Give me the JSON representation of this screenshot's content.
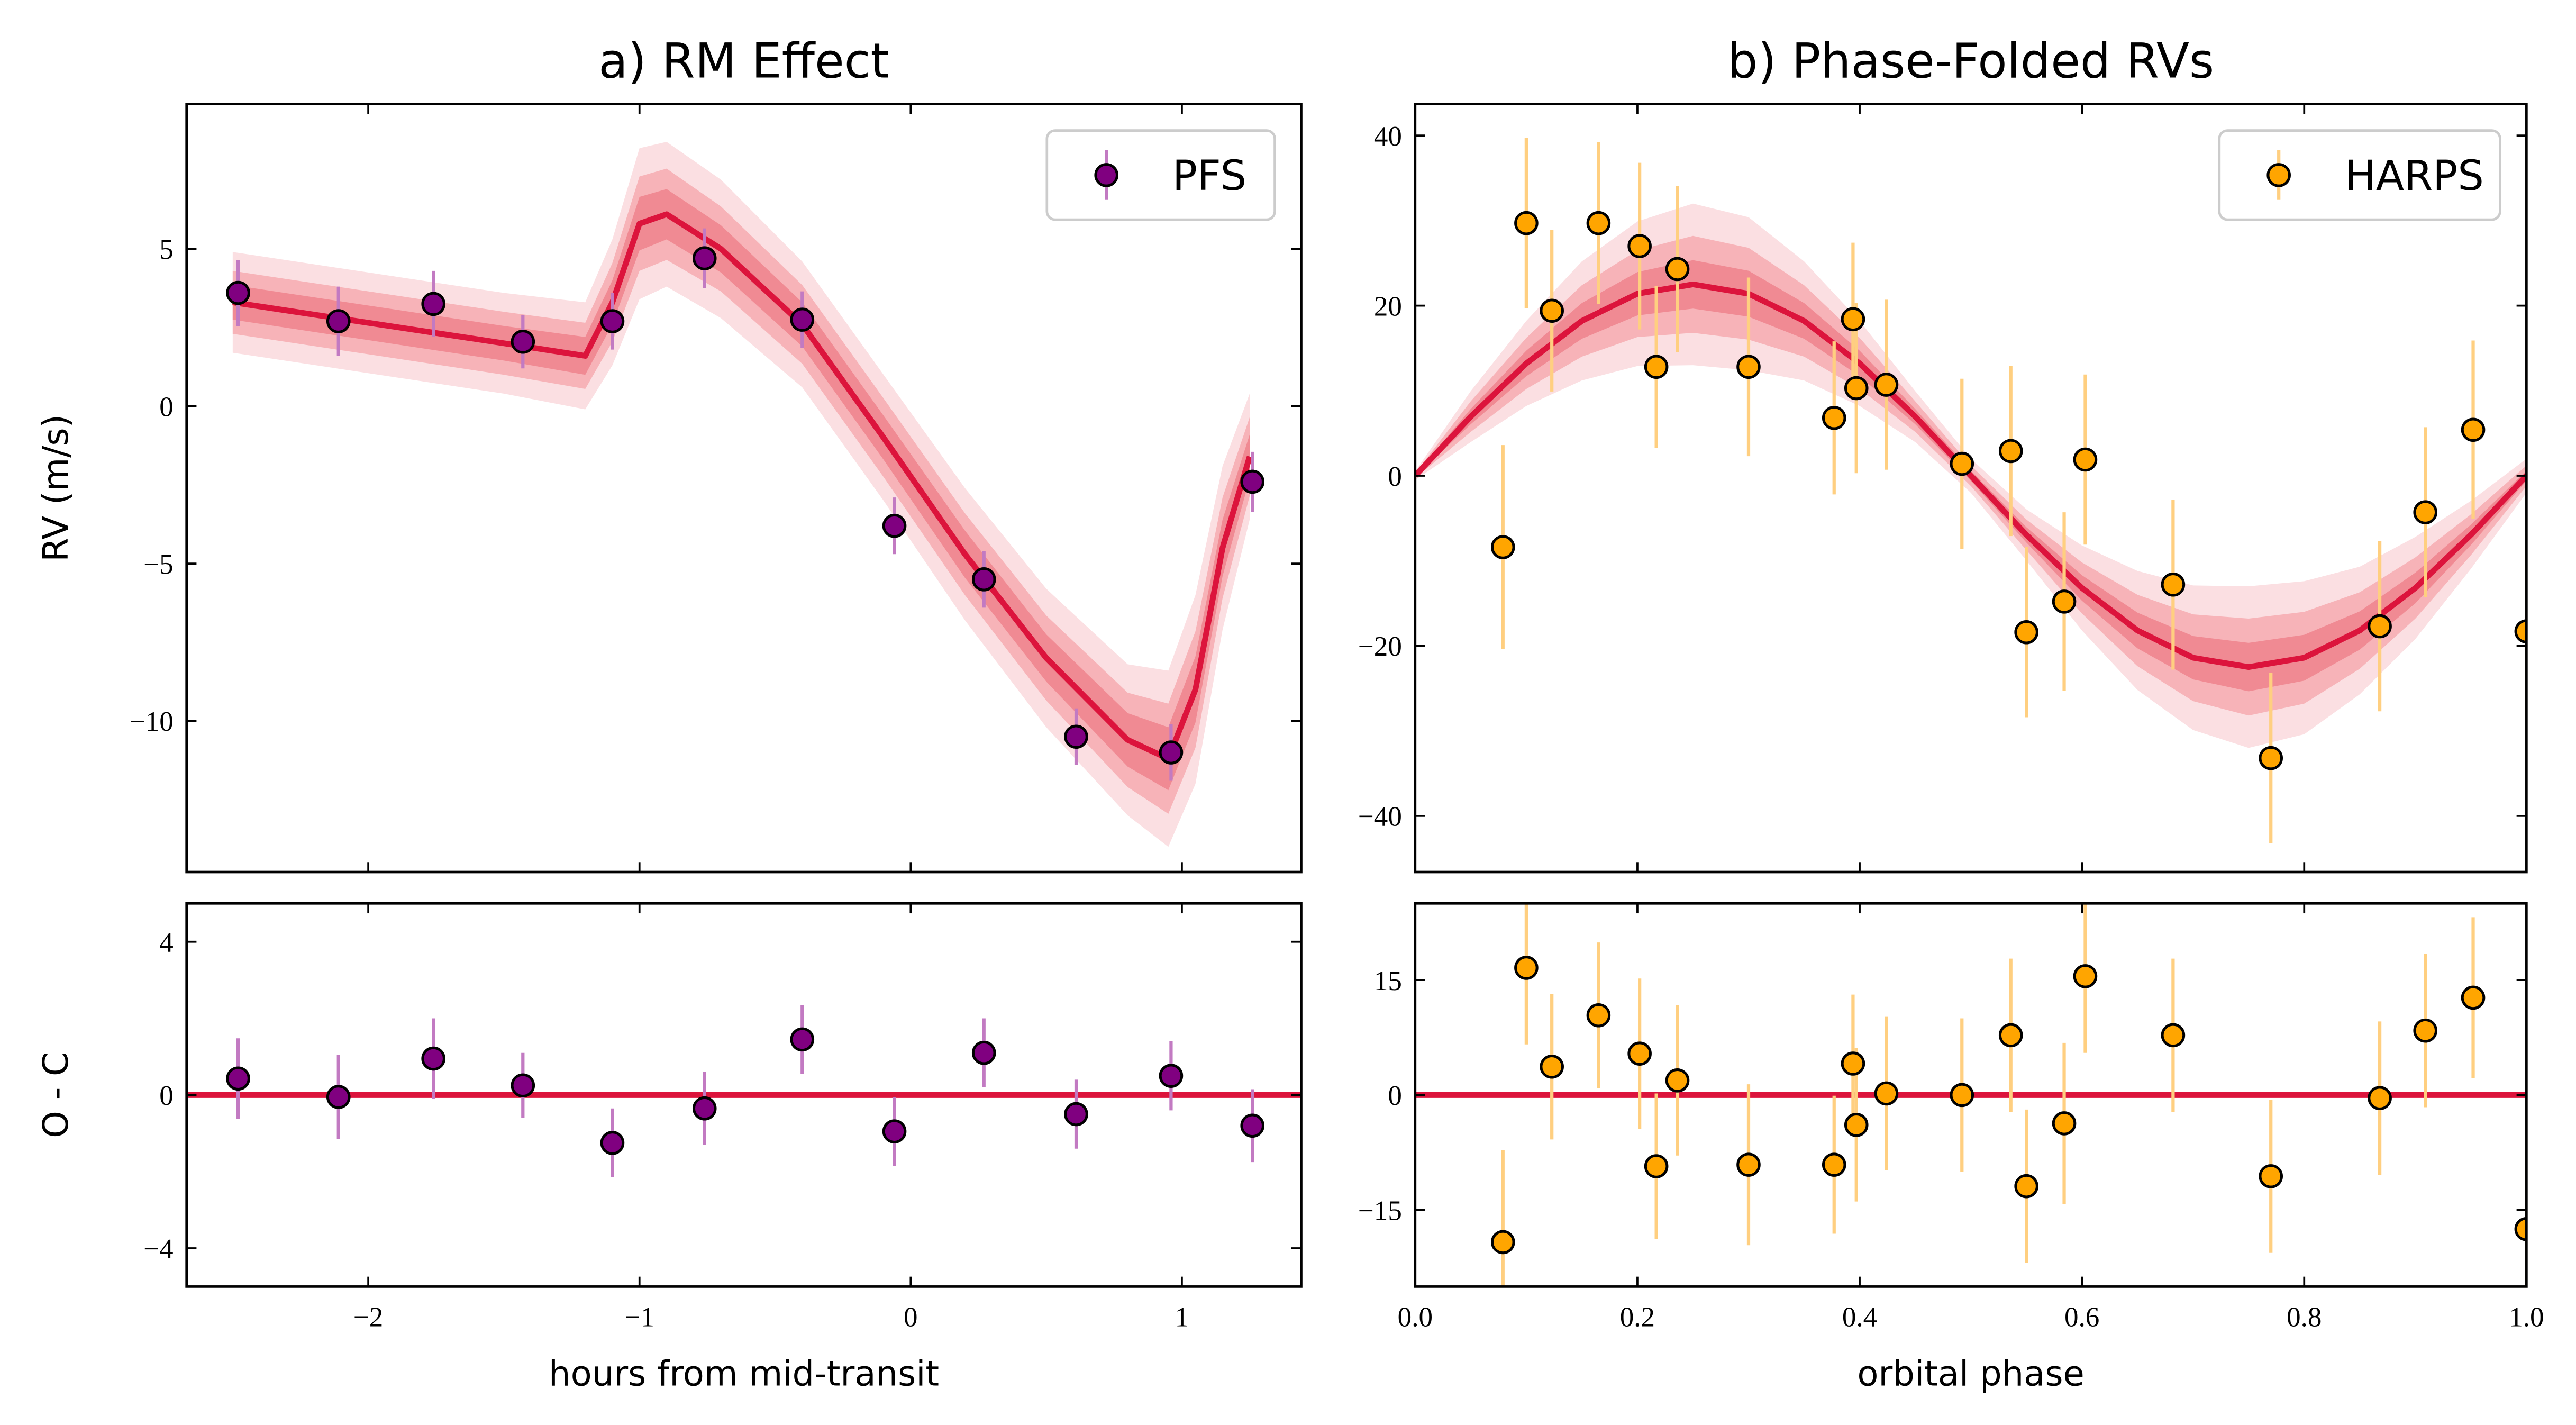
{
  "chart_data": [
    {
      "type": "scatter",
      "title": "a) RM Effect",
      "ylabel": "RV (m/s)",
      "legend": "upper right",
      "xlim": [
        -2.67,
        1.44
      ],
      "ylim": [
        -14.8,
        9.6
      ],
      "yticks": [
        {
          "value": -10,
          "label": "−10"
        },
        {
          "value": -5,
          "label": "−5"
        },
        0,
        5
      ],
      "series": [
        {
          "name": "PFS",
          "color": "#800080",
          "ecolor": "#c27ac2",
          "x": [
            -2.48,
            -2.11,
            -1.76,
            -1.43,
            -1.1,
            -0.76,
            -0.4,
            -0.06,
            0.27,
            0.61,
            0.96,
            1.26
          ],
          "values": [
            3.6,
            2.7,
            3.25,
            2.05,
            2.7,
            4.7,
            2.75,
            -3.8,
            -5.5,
            -10.5,
            -11.0,
            -2.4
          ],
          "errors": [
            1.05,
            1.1,
            1.05,
            0.85,
            0.9,
            0.95,
            0.9,
            0.9,
            0.9,
            0.9,
            0.9,
            0.95
          ]
        }
      ],
      "model": {
        "color": "#dc143c",
        "x": [
          -2.5,
          -2.0,
          -1.5,
          -1.2,
          -1.1,
          -1.0,
          -0.9,
          -0.7,
          -0.4,
          -0.1,
          0.2,
          0.5,
          0.8,
          0.95,
          1.05,
          1.15,
          1.25
        ],
        "values": [
          3.3,
          2.65,
          2.0,
          1.6,
          3.3,
          5.8,
          6.1,
          5.0,
          2.6,
          -1.0,
          -4.7,
          -8.0,
          -10.6,
          -11.2,
          -9.0,
          -4.5,
          -1.6
        ]
      },
      "bands": [
        {
          "color": "#fbdfe2",
          "halfwidth": [
            1.6,
            1.6,
            1.6,
            1.7,
            2.0,
            2.4,
            2.3,
            2.2,
            2.0,
            2.0,
            2.1,
            2.2,
            2.4,
            2.8,
            3.0,
            2.6,
            2.0
          ]
        },
        {
          "color": "#f7b3b8",
          "halfwidth": [
            1.0,
            1.0,
            1.0,
            1.05,
            1.25,
            1.5,
            1.45,
            1.35,
            1.25,
            1.25,
            1.3,
            1.35,
            1.5,
            1.75,
            1.85,
            1.6,
            1.25
          ]
        },
        {
          "color": "#f08a93",
          "halfwidth": [
            0.55,
            0.55,
            0.55,
            0.6,
            0.7,
            0.85,
            0.8,
            0.75,
            0.7,
            0.7,
            0.75,
            0.75,
            0.85,
            1.0,
            1.05,
            0.9,
            0.7
          ]
        }
      ]
    },
    {
      "type": "scatter",
      "xlabel": "hours from mid-transit",
      "ylabel": "O - C",
      "xlim": [
        -2.67,
        1.44
      ],
      "ylim": [
        -5,
        5
      ],
      "xticks": [
        {
          "value": -2,
          "label": "−2"
        },
        {
          "value": -1,
          "label": "−1"
        },
        0,
        1
      ],
      "yticks": [
        {
          "value": -4,
          "label": "−4"
        },
        0,
        4
      ],
      "hline": 0,
      "hline_color": "#dc143c",
      "series": [
        {
          "color": "#800080",
          "ecolor": "#c27ac2",
          "x": [
            -2.48,
            -2.11,
            -1.76,
            -1.43,
            -1.1,
            -0.76,
            -0.4,
            -0.06,
            0.27,
            0.61,
            0.96,
            1.26
          ],
          "values": [
            0.43,
            -0.05,
            0.95,
            0.25,
            -1.25,
            -0.35,
            1.45,
            -0.95,
            1.1,
            -0.5,
            0.5,
            -0.8
          ],
          "errors": [
            1.05,
            1.1,
            1.05,
            0.85,
            0.9,
            0.95,
            0.9,
            0.9,
            0.9,
            0.9,
            0.9,
            0.95
          ]
        }
      ]
    },
    {
      "type": "scatter",
      "title": "b) Phase-Folded RVs",
      "legend": "upper right",
      "xlim": [
        0,
        1
      ],
      "ylim": [
        -46.6,
        43.7
      ],
      "yticks": [
        {
          "value": -40,
          "label": "−40"
        },
        {
          "value": -20,
          "label": "−20"
        },
        0,
        20,
        40
      ],
      "series": [
        {
          "name": "HARPS",
          "color": "#ffa500",
          "ecolor": "#ffcf80",
          "x": [
            0.079,
            0.1,
            0.123,
            0.165,
            0.202,
            0.217,
            0.236,
            0.3,
            0.377,
            0.394,
            0.397,
            0.424,
            0.492,
            0.536,
            0.55,
            0.584,
            0.603,
            0.682,
            0.77,
            0.868,
            0.909,
            0.952,
            1.0
          ],
          "values": [
            -8.4,
            29.7,
            19.4,
            29.7,
            27,
            12.8,
            24.3,
            12.8,
            6.8,
            18.4,
            10.3,
            10.7,
            1.4,
            2.9,
            -18.4,
            -14.8,
            1.9,
            -12.8,
            -33.2,
            -17.7,
            -4.3,
            5.4,
            -18.3
          ],
          "errors": [
            12,
            10,
            9.5,
            9.5,
            9.8,
            9.5,
            9.8,
            10.5,
            9,
            9,
            10,
            10,
            10,
            10,
            10,
            10.5,
            10,
            10,
            10,
            10,
            10,
            10.5,
            10
          ]
        }
      ],
      "model": {
        "color": "#dc143c",
        "x": [
          0,
          0.05,
          0.1,
          0.15,
          0.2,
          0.25,
          0.3,
          0.35,
          0.4,
          0.45,
          0.5,
          0.55,
          0.6,
          0.65,
          0.7,
          0.75,
          0.8,
          0.85,
          0.9,
          0.95,
          1.0
        ],
        "values": [
          0,
          6.95,
          13.2,
          18.2,
          21.4,
          22.5,
          21.4,
          18.2,
          13.2,
          6.95,
          0,
          -6.95,
          -13.2,
          -18.2,
          -21.4,
          -22.5,
          -21.4,
          -18.2,
          -13.2,
          -6.95,
          0
        ]
      },
      "bands": [
        {
          "color": "#fbdfe2",
          "halfwidth": [
            0.5,
            3,
            5,
            7,
            8.5,
            9.5,
            9,
            7,
            5,
            3,
            2,
            3,
            5,
            7,
            8.5,
            9.5,
            9,
            7.5,
            6,
            4,
            2
          ]
        },
        {
          "color": "#f7b3b8",
          "halfwidth": [
            0.3,
            1.8,
            3,
            4.2,
            5.1,
            5.7,
            5.4,
            4.2,
            3,
            1.8,
            1.2,
            1.8,
            3,
            4.2,
            5.1,
            5.7,
            5.4,
            4.5,
            3.6,
            2.4,
            1.2
          ]
        },
        {
          "color": "#f08a93",
          "halfwidth": [
            0.15,
            0.9,
            1.5,
            2.1,
            2.55,
            2.85,
            2.7,
            2.1,
            1.5,
            0.9,
            0.6,
            0.9,
            1.5,
            2.1,
            2.55,
            2.85,
            2.7,
            2.25,
            1.8,
            1.2,
            0.6
          ]
        }
      ]
    },
    {
      "type": "scatter",
      "xlabel": "orbital phase",
      "xlim": [
        0,
        1
      ],
      "ylim": [
        -25,
        25
      ],
      "xticks": [
        {
          "value": 0,
          "label": "0.0"
        },
        0.2,
        0.4,
        0.6,
        0.8,
        {
          "value": 1,
          "label": "1.0"
        }
      ],
      "yticks": [
        {
          "value": -15,
          "label": "−15"
        },
        0,
        15
      ],
      "hline": 0,
      "hline_color": "#dc143c",
      "series": [
        {
          "color": "#ffa500",
          "ecolor": "#ffcf80",
          "x": [
            0.079,
            0.1,
            0.123,
            0.165,
            0.202,
            0.217,
            0.236,
            0.3,
            0.377,
            0.394,
            0.397,
            0.424,
            0.492,
            0.536,
            0.55,
            0.584,
            0.603,
            0.682,
            0.77,
            0.868,
            0.909,
            0.952,
            1.0
          ],
          "values": [
            -19.2,
            16.6,
            3.7,
            10.4,
            5.4,
            -9.3,
            1.9,
            -9.1,
            -9.1,
            4.1,
            -3.9,
            0.2,
            0,
            7.8,
            -11.9,
            -3.7,
            15.5,
            7.8,
            -10.6,
            -0.4,
            8.4,
            12.7,
            -17.5
          ],
          "errors": [
            12,
            10,
            9.5,
            9.5,
            9.8,
            9.5,
            9.8,
            10.5,
            9,
            9,
            10,
            10,
            10,
            10,
            10,
            10.5,
            10,
            10,
            10,
            10,
            10,
            10.5,
            10
          ]
        }
      ]
    }
  ]
}
